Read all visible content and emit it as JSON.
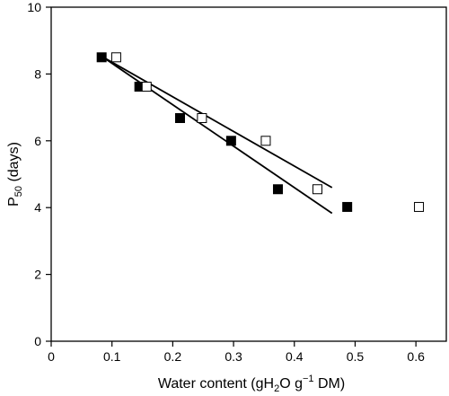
{
  "chart_data": {
    "type": "scatter",
    "xlabel": {
      "base": "Water content (g",
      "h2o_prefix": "H",
      "h2o_sub": "2",
      "h2o_suffix": "O g",
      "sup": "−1",
      "end": " DM)"
    },
    "ylabel": {
      "base": "P",
      "sub": "50",
      "rest": " (days)"
    },
    "xlim": [
      0,
      0.65
    ],
    "ylim": [
      0,
      10
    ],
    "x_ticks": [
      0,
      0.1,
      0.2,
      0.3,
      0.4,
      0.5,
      0.6
    ],
    "x_tick_labels": [
      "0",
      "0.1",
      "0.2",
      "0.3",
      "0.4",
      "0.5",
      "0.6"
    ],
    "y_ticks": [
      0,
      2,
      4,
      6,
      8,
      10
    ],
    "y_tick_labels": [
      "0",
      "2",
      "4",
      "6",
      "8",
      "10"
    ],
    "grid": false,
    "series": [
      {
        "marker": "filled-square",
        "color": "#000000",
        "x": [
          0.083,
          0.145,
          0.212,
          0.296,
          0.373,
          0.487
        ],
        "y": [
          8.5,
          7.62,
          6.68,
          6.0,
          4.55,
          4.02
        ]
      },
      {
        "marker": "open-square",
        "color": "#000000",
        "x": [
          0.107,
          0.157,
          0.248,
          0.353,
          0.438,
          0.605
        ],
        "y": [
          8.5,
          7.62,
          6.68,
          6.0,
          4.55,
          4.02
        ]
      }
    ],
    "fit_lines": [
      {
        "x": [
          0.083,
          0.462
        ],
        "y": [
          8.53,
          3.83
        ]
      },
      {
        "x": [
          0.083,
          0.462
        ],
        "y": [
          8.53,
          4.6
        ]
      }
    ]
  }
}
